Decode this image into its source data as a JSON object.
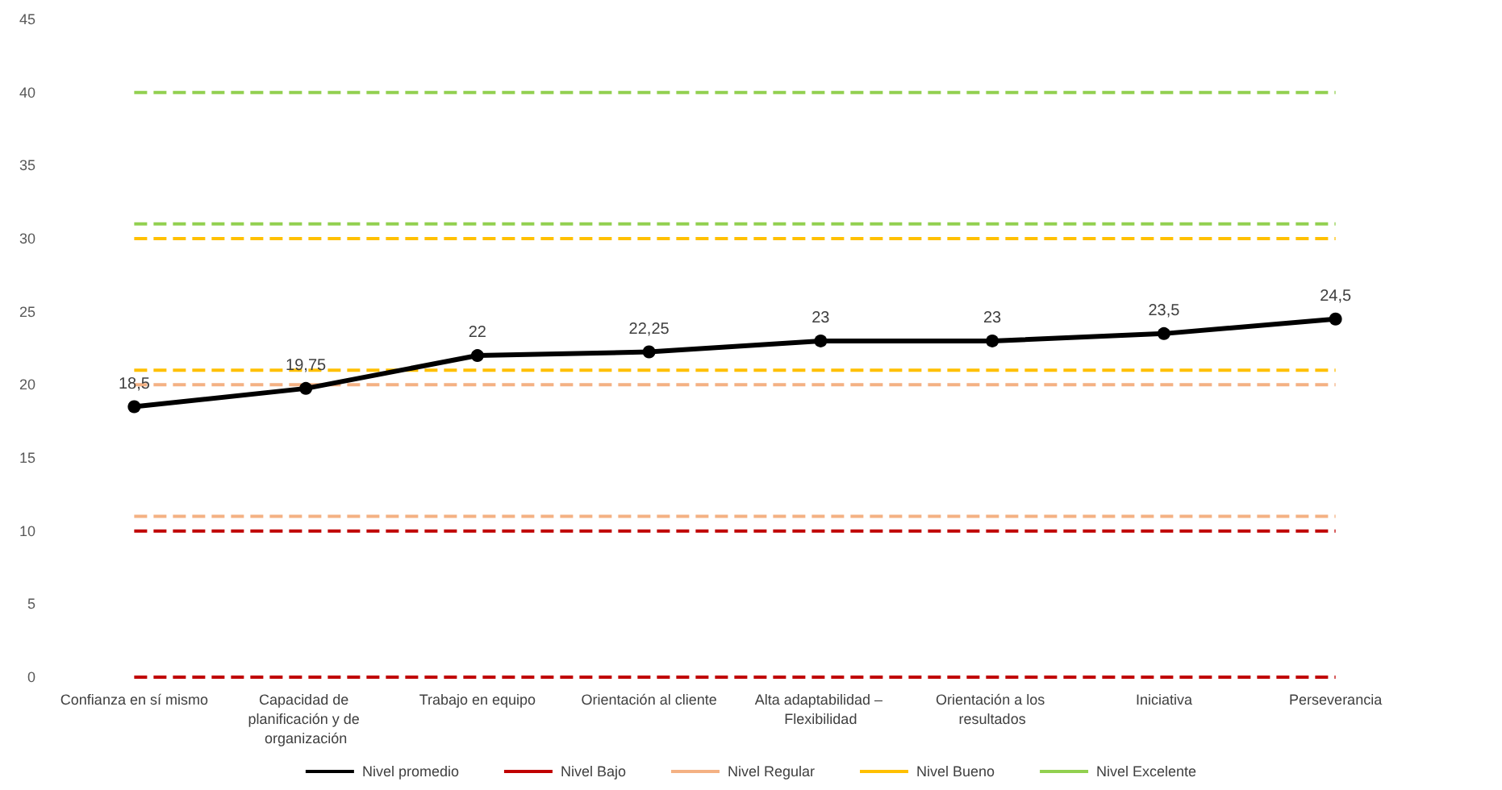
{
  "chart_data": {
    "type": "line",
    "categories": [
      "Confianza en sí mismo",
      "Capacidad de planificación y de organización",
      "Trabajo en equipo",
      "Orientación al cliente",
      "Alta adaptabilidad – Flexibilidad",
      "Orientación a los resultados",
      "Iniciativa",
      "Perseverancia"
    ],
    "ylim": [
      0,
      45
    ],
    "yticks": [
      0,
      5,
      10,
      15,
      20,
      25,
      30,
      35,
      40,
      45
    ],
    "grid": false,
    "legend": "bottom",
    "series": [
      {
        "name": "Nivel promedio",
        "color": "#000000",
        "marker": "circle",
        "line_style": "solid",
        "values": [
          18.5,
          19.75,
          22,
          22.25,
          23,
          23,
          23.5,
          24.5
        ],
        "value_labels": [
          "18,5",
          "19,75",
          "22",
          "22,25",
          "23",
          "23",
          "23,5",
          "24,5"
        ]
      },
      {
        "name": "Nivel Bajo",
        "color": "#c00000",
        "marker": "none",
        "line_style": "dashed",
        "values": [
          0,
          0,
          0,
          0,
          0,
          0,
          0,
          0
        ]
      },
      {
        "color": "#c00000",
        "marker": "none",
        "line_style": "dashed",
        "values": [
          10,
          10,
          10,
          10,
          10,
          10,
          10,
          10
        ]
      },
      {
        "name": "Nivel Regular",
        "color": "#f4b183",
        "marker": "none",
        "line_style": "dashed",
        "values": [
          11,
          11,
          11,
          11,
          11,
          11,
          11,
          11
        ]
      },
      {
        "color": "#f4b183",
        "marker": "none",
        "line_style": "dashed",
        "values": [
          20,
          20,
          20,
          20,
          20,
          20,
          20,
          20
        ]
      },
      {
        "name": "Nivel Bueno",
        "color": "#ffc000",
        "marker": "none",
        "line_style": "dashed",
        "values": [
          21,
          21,
          21,
          21,
          21,
          21,
          21,
          21
        ]
      },
      {
        "color": "#ffc000",
        "marker": "none",
        "line_style": "dashed",
        "values": [
          30,
          30,
          30,
          30,
          30,
          30,
          30,
          30
        ]
      },
      {
        "name": "Nivel Excelente",
        "color": "#92d050",
        "marker": "none",
        "line_style": "dashed",
        "values": [
          31,
          31,
          31,
          31,
          31,
          31,
          31,
          31
        ]
      },
      {
        "color": "#92d050",
        "marker": "none",
        "line_style": "dashed",
        "values": [
          40,
          40,
          40,
          40,
          40,
          40,
          40,
          40
        ]
      }
    ]
  }
}
